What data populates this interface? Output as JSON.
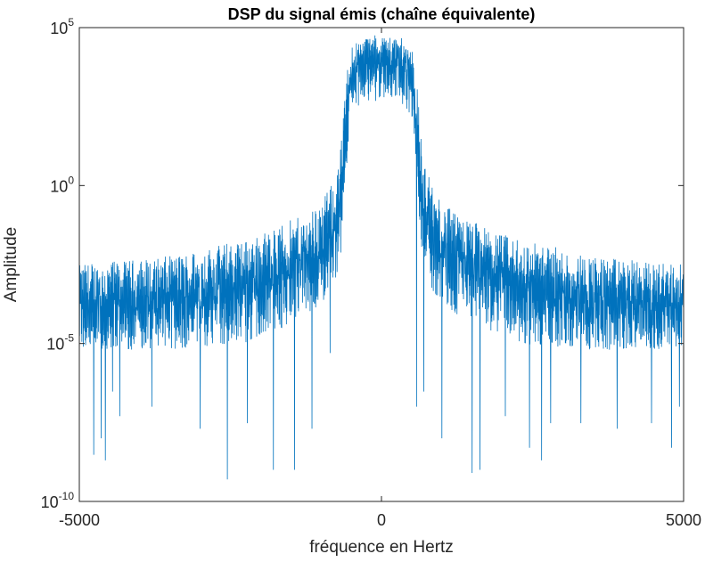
{
  "chart_data": {
    "type": "line",
    "title": "DSP du signal émis (chaîne équivalente)",
    "xlabel": "fréquence en Hertz",
    "ylabel": "Amplitude",
    "xlim": [
      -5000,
      5000
    ],
    "ylim": [
      1e-10,
      100000
    ],
    "yscale": "log",
    "grid": false,
    "legend": "none",
    "x_ticks": [
      {
        "value": -5000,
        "label": "-5000"
      },
      {
        "value": 0,
        "label": "0"
      },
      {
        "value": 5000,
        "label": "5000"
      }
    ],
    "y_ticks": [
      {
        "value": 100000,
        "base": "10",
        "exp": "5"
      },
      {
        "value": 1,
        "base": "10",
        "exp": "0"
      },
      {
        "value": 1e-05,
        "base": "10",
        "exp": "-5"
      },
      {
        "value": 1e-10,
        "base": "10",
        "exp": "-10"
      }
    ],
    "series": [
      {
        "color": "#0072BD",
        "x": [
          -5000,
          -4750,
          -4500,
          -4250,
          -4000,
          -3750,
          -3500,
          -3250,
          -3000,
          -2750,
          -2500,
          -2250,
          -2000,
          -1750,
          -1500,
          -1250,
          -1000,
          -900,
          -800,
          -700,
          -650,
          -600,
          -550,
          -500,
          -400,
          -300,
          -200,
          -100,
          0,
          100,
          200,
          300,
          400,
          500,
          550,
          600,
          650,
          700,
          800,
          900,
          1000,
          1250,
          1500,
          1750,
          2000,
          2250,
          2500,
          2750,
          3000,
          3250,
          3500,
          3750,
          4000,
          4250,
          4500,
          4750,
          5000
        ],
        "y_mean": [
          0.0001,
          0.0001,
          0.0001,
          0.0001,
          0.0001,
          0.0001,
          0.0001,
          0.00012,
          0.00015,
          0.0002,
          0.00025,
          0.0003,
          0.0004,
          0.0006,
          0.001,
          0.002,
          0.004,
          0.007,
          0.015,
          0.04,
          0.2,
          5,
          200,
          2000,
          3000,
          5000,
          5000,
          5000,
          5000,
          5000,
          5000,
          5000,
          3000,
          2000,
          200,
          5,
          0.2,
          0.04,
          0.015,
          0.007,
          0.004,
          0.002,
          0.001,
          0.0006,
          0.0004,
          0.0003,
          0.00025,
          0.0002,
          0.00015,
          0.00012,
          0.0001,
          0.0001,
          0.0001,
          0.0001,
          0.0001,
          0.0001,
          0.0001
        ],
        "y_upper": [
          0.003,
          0.004,
          0.004,
          0.004,
          0.005,
          0.005,
          0.006,
          0.008,
          0.01,
          0.013,
          0.017,
          0.02,
          0.03,
          0.05,
          0.08,
          0.12,
          0.3,
          0.6,
          1.5,
          8,
          50,
          1000,
          10000,
          30000,
          40000,
          50000,
          60000,
          60000,
          60000,
          60000,
          60000,
          50000,
          40000,
          30000,
          10000,
          1000,
          50,
          8,
          1.5,
          0.6,
          0.3,
          0.12,
          0.08,
          0.05,
          0.03,
          0.02,
          0.017,
          0.013,
          0.01,
          0.008,
          0.006,
          0.005,
          0.005,
          0.004,
          0.004,
          0.004,
          0.003
        ],
        "y_floor": [
          1e-06,
          1e-06,
          1e-06,
          1e-06,
          1e-06,
          1e-06,
          1e-06,
          1e-06,
          1e-06,
          1e-06,
          1e-06,
          1e-06,
          2e-06,
          3e-06,
          5e-06,
          1e-05,
          2e-05,
          4e-05,
          8e-05,
          0.0003,
          0.003,
          0.1,
          5,
          30,
          50,
          80,
          100,
          100,
          100,
          100,
          100,
          80,
          50,
          30,
          5,
          0.1,
          0.003,
          0.0003,
          8e-05,
          4e-05,
          2e-05,
          1e-05,
          5e-06,
          3e-06,
          2e-06,
          1e-06,
          1e-06,
          1e-06,
          1e-06,
          1e-06,
          1e-06,
          1e-06,
          1e-06,
          1e-06,
          1e-06,
          1e-06,
          1e-06
        ],
        "deep_nulls": [
          {
            "x": -4760,
            "y": 3e-09
          },
          {
            "x": -4640,
            "y": 1e-08
          },
          {
            "x": -4570,
            "y": 2e-09
          },
          {
            "x": -4450,
            "y": 3e-07
          },
          {
            "x": -4330,
            "y": 5e-08
          },
          {
            "x": -3800,
            "y": 1e-07
          },
          {
            "x": -3000,
            "y": 2e-08
          },
          {
            "x": -2550,
            "y": 5e-10
          },
          {
            "x": -2220,
            "y": 3e-08
          },
          {
            "x": -1790,
            "y": 1e-09
          },
          {
            "x": -1440,
            "y": 1e-09
          },
          {
            "x": -1150,
            "y": 2e-08
          },
          {
            "x": -850,
            "y": 5e-06
          },
          {
            "x": 580,
            "y": 1e-07
          },
          {
            "x": 700,
            "y": 3e-07
          },
          {
            "x": 1000,
            "y": 1e-08
          },
          {
            "x": 1500,
            "y": 8e-10
          },
          {
            "x": 1630,
            "y": 1e-09
          },
          {
            "x": 2050,
            "y": 5e-08
          },
          {
            "x": 2450,
            "y": 5e-09
          },
          {
            "x": 2650,
            "y": 2e-09
          },
          {
            "x": 2800,
            "y": 3e-08
          },
          {
            "x": 3300,
            "y": 3e-08
          },
          {
            "x": 3900,
            "y": 2e-08
          },
          {
            "x": 4470,
            "y": 3e-08
          },
          {
            "x": 4800,
            "y": 5e-09
          },
          {
            "x": 4930,
            "y": 1e-07
          }
        ]
      }
    ]
  }
}
